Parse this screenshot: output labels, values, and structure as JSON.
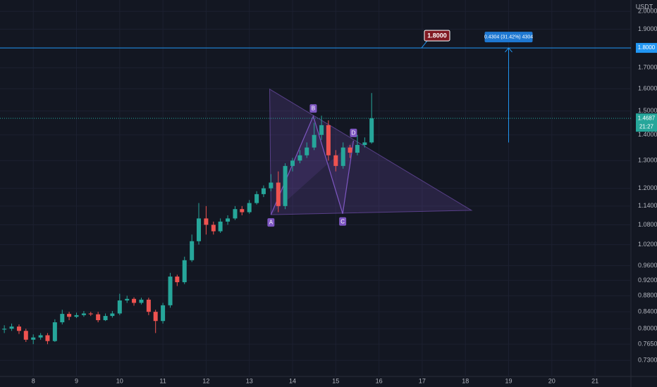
{
  "chart_data": {
    "type": "candlestick",
    "currency": "USDT",
    "x": [
      7.33,
      7.5,
      7.67,
      7.83,
      8,
      8.17,
      8.33,
      8.5,
      8.67,
      8.83,
      9,
      9.17,
      9.33,
      9.5,
      9.67,
      9.83,
      10,
      10.17,
      10.33,
      10.5,
      10.67,
      10.83,
      11,
      11.17,
      11.33,
      11.5,
      11.67,
      11.83,
      12,
      12.17,
      12.33,
      12.5,
      12.67,
      12.83,
      13,
      13.17,
      13.33,
      13.5,
      13.67,
      13.83,
      14,
      14.17,
      14.33,
      14.5,
      14.67,
      14.83,
      15,
      15.17,
      15.33,
      15.5,
      15.67,
      15.83
    ],
    "open": [
      0.798,
      0.8,
      0.805,
      0.795,
      0.775,
      0.78,
      0.785,
      0.772,
      0.815,
      0.835,
      0.828,
      0.832,
      0.836,
      0.834,
      0.82,
      0.83,
      0.836,
      0.868,
      0.872,
      0.862,
      0.87,
      0.84,
      0.818,
      0.856,
      0.93,
      0.915,
      0.975,
      1.03,
      1.1,
      1.08,
      1.06,
      1.09,
      1.1,
      1.13,
      1.12,
      1.15,
      1.18,
      1.2,
      1.22,
      1.14,
      1.28,
      1.3,
      1.32,
      1.35,
      1.4,
      1.44,
      1.32,
      1.28,
      1.35,
      1.33,
      1.36,
      1.37
    ],
    "high": [
      0.808,
      0.812,
      0.81,
      0.8,
      0.787,
      0.79,
      0.79,
      0.822,
      0.845,
      0.84,
      0.838,
      0.842,
      0.84,
      0.84,
      0.836,
      0.842,
      0.885,
      0.88,
      0.876,
      0.875,
      0.875,
      0.845,
      0.862,
      0.94,
      0.935,
      0.985,
      1.05,
      1.15,
      1.14,
      1.09,
      1.1,
      1.11,
      1.14,
      1.14,
      1.16,
      1.19,
      1.21,
      1.25,
      1.26,
      1.29,
      1.31,
      1.34,
      1.37,
      1.45,
      1.48,
      1.46,
      1.34,
      1.37,
      1.36,
      1.4,
      1.39,
      1.58
    ],
    "low": [
      0.79,
      0.795,
      0.788,
      0.77,
      0.765,
      0.775,
      0.765,
      0.77,
      0.81,
      0.82,
      0.825,
      0.828,
      0.83,
      0.815,
      0.818,
      0.826,
      0.832,
      0.862,
      0.855,
      0.858,
      0.832,
      0.79,
      0.812,
      0.85,
      0.905,
      0.91,
      0.97,
      1.02,
      1.05,
      1.05,
      1.055,
      1.08,
      1.095,
      1.11,
      1.115,
      1.145,
      1.17,
      1.19,
      1.12,
      1.13,
      1.26,
      1.29,
      1.31,
      1.34,
      1.38,
      1.3,
      1.26,
      1.27,
      1.31,
      1.32,
      1.35,
      1.365
    ],
    "close": [
      0.8,
      0.805,
      0.795,
      0.775,
      0.78,
      0.785,
      0.772,
      0.815,
      0.835,
      0.828,
      0.832,
      0.836,
      0.834,
      0.82,
      0.83,
      0.836,
      0.868,
      0.872,
      0.862,
      0.87,
      0.84,
      0.818,
      0.856,
      0.93,
      0.915,
      0.975,
      1.03,
      1.1,
      1.08,
      1.06,
      1.09,
      1.1,
      1.13,
      1.12,
      1.15,
      1.18,
      1.2,
      1.22,
      1.14,
      1.28,
      1.3,
      1.32,
      1.35,
      1.4,
      1.44,
      1.32,
      1.28,
      1.35,
      1.33,
      1.36,
      1.37,
      1.4687
    ],
    "up_color": "#26a69a",
    "down_color": "#ef5350",
    "countdown": "21:27",
    "log_scale": true,
    "grid": true,
    "xlim": [
      7.23,
      21.83
    ],
    "xticks": [
      8,
      9,
      10,
      11,
      12,
      13,
      14,
      15,
      16,
      17,
      18,
      19,
      20,
      21
    ],
    "ylim": [
      0.697,
      2.067
    ],
    "yticks": [
      {
        "value": 0.73,
        "label": "0.7300"
      },
      {
        "value": 0.765,
        "label": "0.7650"
      },
      {
        "value": 0.8,
        "label": "0.8000"
      },
      {
        "value": 0.84,
        "label": "0.8400"
      },
      {
        "value": 0.88,
        "label": "0.8800"
      },
      {
        "value": 0.92,
        "label": "0.9200"
      },
      {
        "value": 0.96,
        "label": "0.9600"
      },
      {
        "value": 1.02,
        "label": "1.0200"
      },
      {
        "value": 1.08,
        "label": "1.0800"
      },
      {
        "value": 1.14,
        "label": "1.1400"
      },
      {
        "value": 1.2,
        "label": "1.2000"
      },
      {
        "value": 1.3,
        "label": "1.3000"
      },
      {
        "value": 1.4,
        "label": "1.4000"
      },
      {
        "value": 1.5,
        "label": "1.5000"
      },
      {
        "value": 1.6,
        "label": "1.6000"
      },
      {
        "value": 1.7,
        "label": "1.7000"
      },
      {
        "value": 1.8,
        "label": "1.8000"
      },
      {
        "value": 1.9,
        "label": "1.9000"
      },
      {
        "value": 2.0,
        "label": "2.0000"
      }
    ],
    "horizontal_line": {
      "value": 1.8,
      "label": "1.8000",
      "color": "#2196f3"
    },
    "measure": {
      "x": 19,
      "from": 1.3696,
      "to": 1.8,
      "label": "0.4304 (31.42%) 4304"
    },
    "pattern": {
      "color": "#7e57c2",
      "points": [
        {
          "label": "A",
          "x": 13.5,
          "y": 1.112
        },
        {
          "label": "B",
          "x": 14.48,
          "y": 1.478
        },
        {
          "label": "C",
          "x": 15.16,
          "y": 1.115
        },
        {
          "label": "D",
          "x": 15.41,
          "y": 1.377
        }
      ],
      "triangle": [
        {
          "x": 13.47,
          "y": 1.598
        },
        {
          "x": 18.14,
          "y": 1.126
        },
        {
          "x": 13.5,
          "y": 1.112
        }
      ]
    }
  }
}
